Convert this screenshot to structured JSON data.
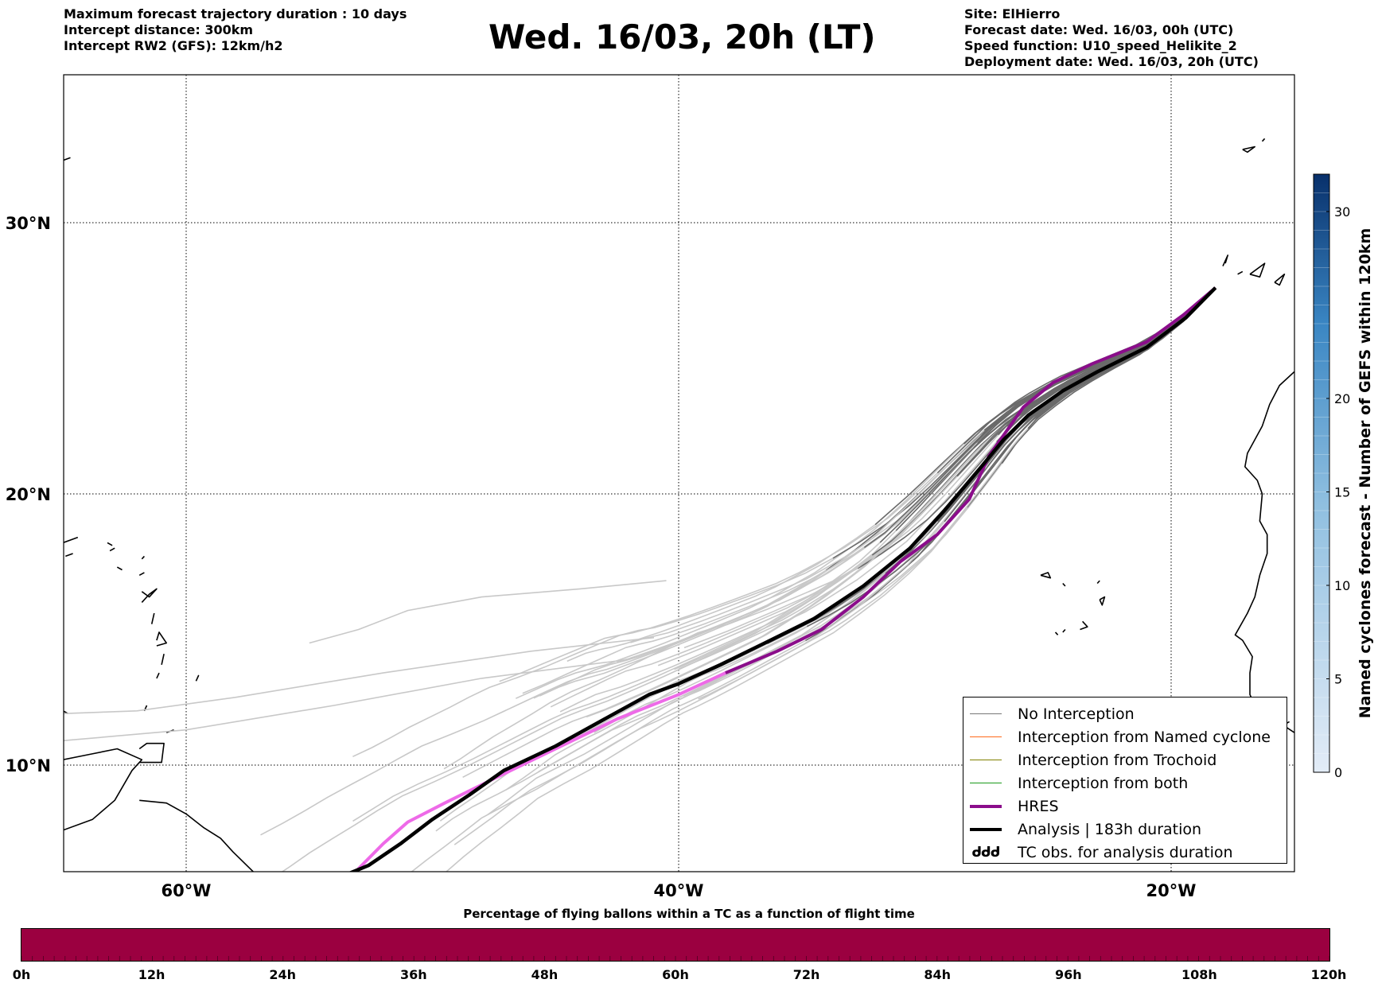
{
  "header": {
    "left_lines": [
      "Maximum forecast trajectory duration : 10 days",
      "Intercept distance: 300km",
      "Intercept RW2 (GFS):  12km/h2"
    ],
    "title": "Wed. 16/03, 20h (LT)",
    "right_lines": [
      "Site: ElHierro",
      "Forecast date: Wed. 16/03, 00h (UTC)",
      "Speed function: U10_speed_Helikite_2",
      "Deployment date: Wed. 16/03, 20h (UTC)"
    ]
  },
  "map": {
    "lon_ticks": [
      {
        "lon": -60,
        "label": "60°W"
      },
      {
        "lon": -40,
        "label": "40°W"
      },
      {
        "lon": -20,
        "label": "20°W"
      }
    ],
    "lat_ticks": [
      {
        "lat": 30,
        "label": "30°N"
      },
      {
        "lat": 20,
        "label": "20°N"
      },
      {
        "lat": 10,
        "label": "10°N"
      }
    ],
    "extent": {
      "lon_min": -65,
      "lon_max": -15,
      "lat_min": 5.4,
      "lat_max": 35.3
    }
  },
  "chart_data": {
    "type": "line",
    "series": [
      {
        "name": "HRES",
        "color": "#8b0d8b",
        "points": [
          [
            -18.2,
            27.6
          ],
          [
            -19.5,
            26.6
          ],
          [
            -21.0,
            25.6
          ],
          [
            -23.2,
            24.8
          ],
          [
            -24.8,
            24.1
          ],
          [
            -26.0,
            23.2
          ],
          [
            -27.4,
            21.4
          ],
          [
            -28.2,
            19.8
          ],
          [
            -29.5,
            18.5
          ],
          [
            -31.0,
            17.5
          ],
          [
            -32.5,
            16.2
          ],
          [
            -34.2,
            15.0
          ],
          [
            -36.0,
            14.2
          ],
          [
            -38.1,
            13.4
          ],
          [
            -40.0,
            12.6
          ],
          [
            -42.5,
            11.7
          ],
          [
            -45.0,
            10.6
          ],
          [
            -47.5,
            9.5
          ],
          [
            -49.5,
            8.6
          ],
          [
            -51.0,
            7.9
          ],
          [
            -52.0,
            7.1
          ],
          [
            -53.2,
            6.0
          ],
          [
            -53.8,
            5.4
          ]
        ]
      },
      {
        "name": "Analysis | 183h duration",
        "color": "#000000",
        "points": [
          [
            -18.2,
            27.6
          ],
          [
            -19.4,
            26.5
          ],
          [
            -21.0,
            25.4
          ],
          [
            -23.0,
            24.5
          ],
          [
            -24.4,
            23.8
          ],
          [
            -25.8,
            22.9
          ],
          [
            -26.8,
            22.0
          ],
          [
            -27.8,
            20.9
          ],
          [
            -29.2,
            19.4
          ],
          [
            -30.6,
            18.0
          ],
          [
            -32.5,
            16.6
          ],
          [
            -34.5,
            15.4
          ],
          [
            -36.5,
            14.5
          ],
          [
            -38.3,
            13.7
          ],
          [
            -40.0,
            13.0
          ],
          [
            -41.2,
            12.6
          ],
          [
            -43.0,
            11.7
          ],
          [
            -45.0,
            10.7
          ],
          [
            -47.1,
            9.8
          ],
          [
            -48.5,
            8.9
          ],
          [
            -50.0,
            8.0
          ],
          [
            -51.3,
            7.1
          ],
          [
            -52.6,
            6.3
          ],
          [
            -54.2,
            5.7
          ]
        ]
      }
    ],
    "legend": [
      {
        "label": "No Interception",
        "color": "#777777",
        "style": "line-thin"
      },
      {
        "label": "Interception from Named cyclone",
        "color": "#ff6a1a",
        "style": "line-thin"
      },
      {
        "label": "Interception from Trochoid",
        "color": "#808000",
        "style": "line-thin"
      },
      {
        "label": "Interception from both",
        "color": "#1a9a1a",
        "style": "line-thin"
      },
      {
        "label": "HRES",
        "color": "#8b0d8b",
        "style": "line-thick"
      },
      {
        "label": "Analysis | 183h duration",
        "color": "#000000",
        "style": "line-thick"
      },
      {
        "label": "TC obs. for analysis duration",
        "color": "#000000",
        "style": "glyph",
        "glyph": "ᑯᑯᑯ"
      }
    ],
    "legend_position": "lower-right"
  },
  "colorbar_right": {
    "label": "Named cyclones forecast - Number of GEFS within 120km",
    "ticks": [
      "0",
      "5",
      "10",
      "15",
      "20",
      "30"
    ],
    "tick_values": [
      0,
      5,
      10,
      15,
      20,
      30
    ],
    "range": [
      0,
      32
    ],
    "low_color": "#dde8f5",
    "high_color": "#08306b"
  },
  "colorbar_bottom": {
    "title": "Percentage of flying ballons within a TC as a function of flight time",
    "fill_color": "#9b0040",
    "tick_labels": [
      "0h",
      "12h",
      "24h",
      "36h",
      "48h",
      "60h",
      "72h",
      "84h",
      "96h",
      "108h",
      "120h"
    ]
  }
}
